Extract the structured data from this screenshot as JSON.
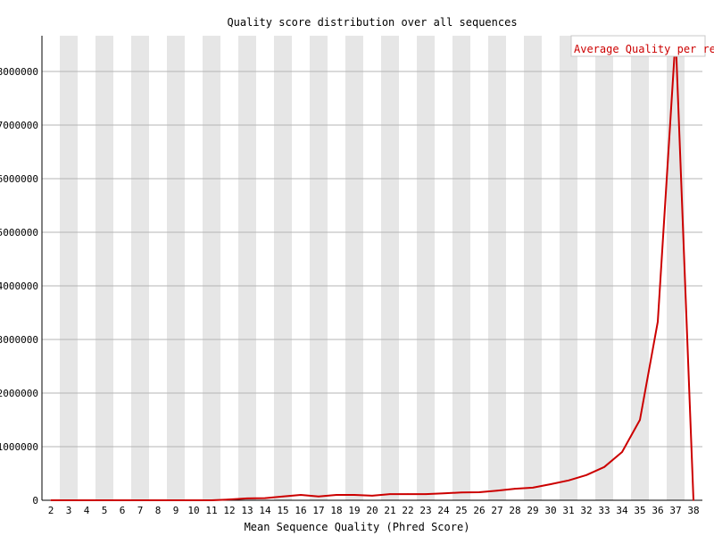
{
  "chart_data": {
    "type": "line",
    "title": "Quality score distribution over all sequences",
    "xlabel": "Mean Sequence Quality (Phred Score)",
    "ylabel": "",
    "ylim": [
      0,
      8666667
    ],
    "yticks": [
      "0",
      "1000000",
      "2000000",
      "3000000",
      "4000000",
      "5000000",
      "6000000",
      "7000000",
      "8000000"
    ],
    "ytick_values": [
      0,
      1000000,
      2000000,
      3000000,
      4000000,
      5000000,
      6000000,
      7000000,
      8000000
    ],
    "x": [
      "2",
      "3",
      "4",
      "5",
      "6",
      "7",
      "8",
      "9",
      "10",
      "11",
      "12",
      "13",
      "14",
      "15",
      "16",
      "17",
      "18",
      "19",
      "20",
      "21",
      "22",
      "23",
      "24",
      "25",
      "26",
      "27",
      "28",
      "29",
      "30",
      "31",
      "32",
      "33",
      "34",
      "35",
      "36",
      "37",
      "38"
    ],
    "series": [
      {
        "name": "Average Quality per read",
        "color": "#cc0000",
        "values": [
          0,
          0,
          0,
          0,
          0,
          0,
          0,
          0,
          0,
          0,
          15000,
          35000,
          40000,
          70000,
          100000,
          70000,
          100000,
          100000,
          85000,
          115000,
          115000,
          115000,
          130000,
          145000,
          150000,
          180000,
          215000,
          235000,
          300000,
          370000,
          470000,
          620000,
          900000,
          1500000,
          3330000,
          8650000,
          0
        ]
      }
    ],
    "grid": true,
    "stripes": true,
    "legend": "top-right"
  }
}
